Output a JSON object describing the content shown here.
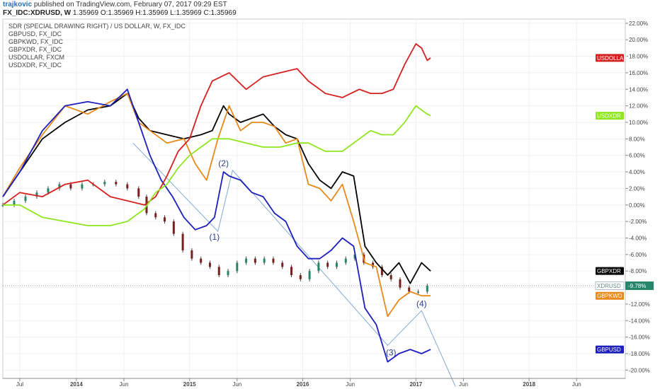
{
  "header": {
    "author": "trajkovic",
    "published": " published on TradingView.com, February 07, 2017 09:29 EST",
    "symbol": "FX_IDC:XDRUSD, W",
    "ohlc": " 1.35969 O:1.35969 H:1.35969 L:1.35969 C:1.35969"
  },
  "chart_data": {
    "type": "line",
    "legend": [
      "SDR (SPECIAL DRAWING RIGHT) / US DOLLAR, W, FX_IDC",
      "GBPUSD, FX_IDC",
      "GBPKWD, FX_IDC",
      "GBPXDR, FX_IDC",
      "USDOLLAR, FXCM",
      "USDXDR, FX_IDC"
    ],
    "ylim": [
      -21,
      22.5
    ],
    "y_ticks": [
      "22.00%",
      "20.00%",
      "18.00%",
      "16.00%",
      "14.00%",
      "12.00%",
      "10.00%",
      "8.00%",
      "6.00%",
      "4.00%",
      "2.00%",
      "0.00%",
      "-2.00%",
      "-4.00%",
      "-6.00%",
      "-8.00%",
      "-10.00%",
      "-12.00%",
      "-14.00%",
      "-16.00%",
      "-18.00%",
      "-20.00%"
    ],
    "y_tick_values": [
      22,
      20,
      18,
      16,
      14,
      12,
      10,
      8,
      6,
      4,
      2,
      0,
      -2,
      -4,
      -6,
      -8,
      -10,
      -12,
      -14,
      -16,
      -18,
      -20
    ],
    "xlim": [
      2013.35,
      2018.85
    ],
    "x_ticks": [
      {
        "label": "Jul",
        "t": 2013.5,
        "bold": false
      },
      {
        "label": "2014",
        "t": 2014.0,
        "bold": true
      },
      {
        "label": "Jun",
        "t": 2014.42,
        "bold": false
      },
      {
        "label": "2015",
        "t": 2015.0,
        "bold": true
      },
      {
        "label": "Jun",
        "t": 2015.42,
        "bold": false
      },
      {
        "label": "2016",
        "t": 2016.0,
        "bold": true
      },
      {
        "label": "Jun",
        "t": 2016.42,
        "bold": false
      },
      {
        "label": "2017",
        "t": 2017.0,
        "bold": true
      },
      {
        "label": "Jun",
        "t": 2017.42,
        "bold": false
      },
      {
        "label": "2018",
        "t": 2018.0,
        "bold": true
      },
      {
        "label": "Jun",
        "t": 2018.42,
        "bold": false
      }
    ],
    "series": [
      {
        "name": "GBPXDR",
        "color": "#000000",
        "label": "GBPXDR",
        "x": [
          2013.35,
          2013.5,
          2013.7,
          2013.9,
          2014.1,
          2014.3,
          2014.45,
          2014.55,
          2014.65,
          2014.8,
          2014.95,
          2015.1,
          2015.2,
          2015.3,
          2015.35,
          2015.45,
          2015.55,
          2015.65,
          2015.75,
          2015.85,
          2015.95,
          2016.05,
          2016.15,
          2016.25,
          2016.35,
          2016.45,
          2016.55,
          2016.65,
          2016.75,
          2016.85,
          2016.95,
          2017.05,
          2017.13
        ],
        "y": [
          1.0,
          4.0,
          8.0,
          10.0,
          11.5,
          12.0,
          13.5,
          10.5,
          9.0,
          8.5,
          8.0,
          8.5,
          9.0,
          12.0,
          11.0,
          10.0,
          10.5,
          11.0,
          9.5,
          8.5,
          8.0,
          5.0,
          3.0,
          2.0,
          4.0,
          3.5,
          -5.0,
          -7.0,
          -8.5,
          -7.0,
          -9.5,
          -7.0,
          -8.0
        ]
      },
      {
        "name": "GBPKWD",
        "color": "#e8891b",
        "label": "GBPKWD",
        "x": [
          2013.35,
          2013.5,
          2013.7,
          2013.9,
          2014.1,
          2014.3,
          2014.45,
          2014.55,
          2014.65,
          2014.8,
          2014.95,
          2015.05,
          2015.15,
          2015.25,
          2015.35,
          2015.45,
          2015.55,
          2015.65,
          2015.75,
          2015.85,
          2015.95,
          2016.05,
          2016.15,
          2016.25,
          2016.35,
          2016.45,
          2016.55,
          2016.65,
          2016.75,
          2016.85,
          2016.95,
          2017.05,
          2017.13
        ],
        "y": [
          1.0,
          4.5,
          8.5,
          12.0,
          11.0,
          12.5,
          13.5,
          10.0,
          9.0,
          7.5,
          8.0,
          5.0,
          3.0,
          8.0,
          12.0,
          9.0,
          10.0,
          10.0,
          9.5,
          7.5,
          8.0,
          2.5,
          2.0,
          0.5,
          2.5,
          -2.0,
          -7.0,
          -7.5,
          -13.5,
          -11.5,
          -10.5,
          -11.0,
          -11.0
        ]
      },
      {
        "name": "GBPUSD",
        "color": "#1c1ebd",
        "label": "GBPUSD",
        "x": [
          2013.35,
          2013.5,
          2013.7,
          2013.9,
          2014.1,
          2014.3,
          2014.45,
          2014.55,
          2014.65,
          2014.75,
          2014.85,
          2014.95,
          2015.05,
          2015.15,
          2015.22,
          2015.3,
          2015.35,
          2015.45,
          2015.55,
          2015.65,
          2015.75,
          2015.85,
          2015.95,
          2016.05,
          2016.15,
          2016.25,
          2016.35,
          2016.45,
          2016.55,
          2016.65,
          2016.75,
          2016.85,
          2016.95,
          2017.05,
          2017.13
        ],
        "y": [
          1.0,
          4.0,
          9.0,
          12.0,
          12.5,
          12.0,
          14.0,
          10.0,
          6.0,
          3.0,
          1.0,
          -1.5,
          -3.0,
          -2.5,
          -1.5,
          4.0,
          3.5,
          3.0,
          1.5,
          1.0,
          -1.0,
          -2.0,
          -5.0,
          -6.5,
          -6.5,
          -5.5,
          -4.0,
          -5.0,
          -12.5,
          -14.5,
          -19.0,
          -18.0,
          -17.5,
          -18.0,
          -17.5
        ]
      },
      {
        "name": "USDOLLAR",
        "color": "#d62020",
        "label": "USDOLLAR",
        "x": [
          2013.35,
          2013.5,
          2013.7,
          2013.9,
          2014.1,
          2014.3,
          2014.45,
          2014.6,
          2014.7,
          2014.8,
          2014.9,
          2015.0,
          2015.1,
          2015.2,
          2015.35,
          2015.5,
          2015.65,
          2015.8,
          2015.95,
          2016.05,
          2016.2,
          2016.35,
          2016.5,
          2016.6,
          2016.7,
          2016.8,
          2016.9,
          2017.0,
          2017.05,
          2017.1,
          2017.13
        ],
        "y": [
          0.0,
          1.5,
          1.0,
          2.5,
          3.0,
          1.0,
          0.5,
          0.0,
          1.0,
          3.5,
          6.5,
          8.0,
          12.0,
          15.0,
          16.0,
          14.0,
          15.5,
          16.0,
          16.5,
          15.0,
          13.5,
          13.0,
          14.0,
          13.5,
          13.5,
          14.0,
          17.0,
          19.5,
          19.0,
          17.5,
          17.8
        ]
      },
      {
        "name": "USDXDR",
        "color": "#8ee61e",
        "label": "USDXDR",
        "x": [
          2013.35,
          2013.5,
          2013.7,
          2013.9,
          2014.1,
          2014.3,
          2014.45,
          2014.6,
          2014.7,
          2014.8,
          2014.9,
          2015.0,
          2015.1,
          2015.2,
          2015.35,
          2015.5,
          2015.65,
          2015.8,
          2015.95,
          2016.05,
          2016.2,
          2016.35,
          2016.5,
          2016.6,
          2016.7,
          2016.8,
          2016.9,
          2017.0,
          2017.05,
          2017.1,
          2017.13
        ],
        "y": [
          0.0,
          0.0,
          -1.5,
          -2.0,
          -2.5,
          -2.5,
          -2.0,
          -0.5,
          1.5,
          2.5,
          4.5,
          6.0,
          7.0,
          8.0,
          8.0,
          7.5,
          7.0,
          7.0,
          7.5,
          7.5,
          6.5,
          6.5,
          8.0,
          9.0,
          8.5,
          8.5,
          10.0,
          12.0,
          11.5,
          11.0,
          10.8
        ]
      }
    ],
    "candles": {
      "name": "XDRUSD",
      "color_up": "#26866a",
      "color_down": "#7a1e1e",
      "label": "XDRUSD",
      "last_value": "-9.78%",
      "x": [
        2013.35,
        2013.45,
        2013.55,
        2013.65,
        2013.75,
        2013.85,
        2013.95,
        2014.05,
        2014.15,
        2014.25,
        2014.35,
        2014.45,
        2014.55,
        2014.62,
        2014.7,
        2014.78,
        2014.86,
        2014.94,
        2015.02,
        2015.1,
        2015.18,
        2015.26,
        2015.34,
        2015.42,
        2015.5,
        2015.58,
        2015.66,
        2015.74,
        2015.82,
        2015.9,
        2015.98,
        2016.06,
        2016.14,
        2016.22,
        2016.3,
        2016.38,
        2016.46,
        2016.54,
        2016.62,
        2016.7,
        2016.78,
        2016.86,
        2016.94,
        2017.02,
        2017.1
      ],
      "y": [
        0.0,
        0.5,
        1.0,
        1.5,
        2.0,
        2.5,
        2.0,
        2.5,
        2.5,
        2.8,
        2.5,
        2.0,
        1.0,
        -1.0,
        -1.5,
        -2.0,
        -3.5,
        -5.5,
        -6.5,
        -7.0,
        -7.5,
        -8.5,
        -8.0,
        -7.0,
        -6.5,
        -7.0,
        -6.5,
        -7.0,
        -7.5,
        -8.5,
        -9.0,
        -8.0,
        -7.0,
        -7.5,
        -7.0,
        -6.5,
        -6.0,
        -7.0,
        -7.5,
        -8.5,
        -9.0,
        -10.0,
        -10.5,
        -10.5,
        -9.8
      ]
    },
    "annotations": [
      {
        "text": "(1)",
        "t": 2015.22,
        "v": -4.2
      },
      {
        "text": "(2)",
        "t": 2015.3,
        "v": 4.7
      },
      {
        "text": "(3)",
        "t": 2016.78,
        "v": -18.2
      },
      {
        "text": "(4)",
        "t": 2017.05,
        "v": -12.3
      }
    ],
    "trendlines": [
      {
        "x": [
          2014.5,
          2015.25,
          2015.38,
          2016.75,
          2017.05,
          2017.35
        ],
        "y": [
          7.5,
          -3.2,
          4.2,
          -17.0,
          -12.8,
          -22.0
        ]
      }
    ],
    "reference_line": -9.78
  }
}
